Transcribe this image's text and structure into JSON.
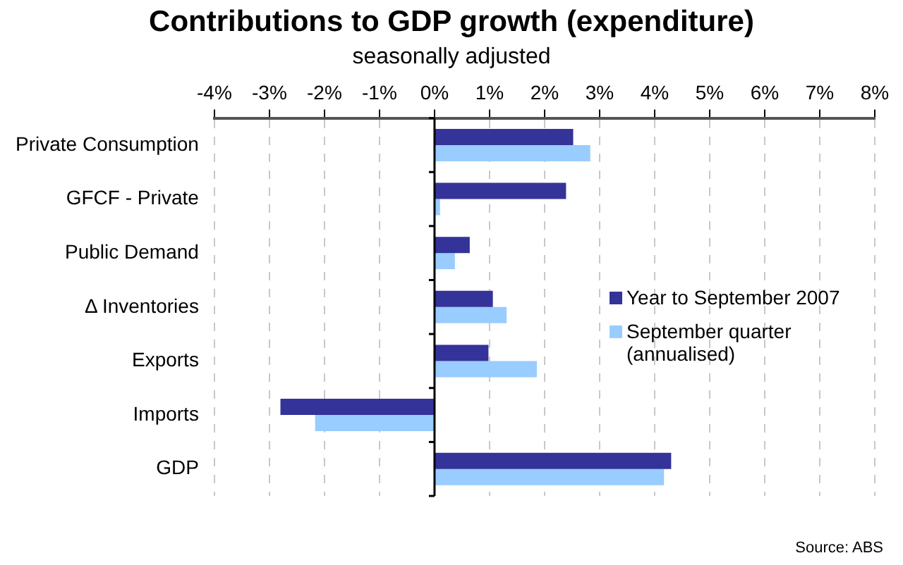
{
  "chart_data": {
    "type": "bar",
    "orientation": "horizontal",
    "title": "Contributions to GDP growth (expenditure)",
    "subtitle": "seasonally adjusted",
    "categories": [
      "Private Consumption",
      "GFCF - Private",
      "Public Demand",
      "Δ Inventories",
      "Exports",
      "Imports",
      "GDP"
    ],
    "series": [
      {
        "name": "Year to September 2007",
        "color": "#333399",
        "values": [
          2.52,
          2.39,
          0.64,
          1.06,
          0.98,
          -2.8,
          4.3
        ]
      },
      {
        "name": "September quarter (annualised)",
        "color": "#99ccff",
        "values": [
          2.83,
          0.1,
          0.37,
          1.31,
          1.86,
          -2.17,
          4.17
        ]
      }
    ],
    "xlim": [
      -4,
      8
    ],
    "xticks": [
      {
        "value": -4,
        "label": "-4%"
      },
      {
        "value": -3,
        "label": "-3%"
      },
      {
        "value": -2,
        "label": "-2%"
      },
      {
        "value": -1,
        "label": "-1%"
      },
      {
        "value": 0,
        "label": "0%"
      },
      {
        "value": 1,
        "label": "1%"
      },
      {
        "value": 2,
        "label": "2%"
      },
      {
        "value": 3,
        "label": "3%"
      },
      {
        "value": 4,
        "label": "4%"
      },
      {
        "value": 5,
        "label": "5%"
      },
      {
        "value": 6,
        "label": "6%"
      },
      {
        "value": 7,
        "label": "7%"
      },
      {
        "value": 8,
        "label": "8%"
      }
    ],
    "grid": "x",
    "legend": "right",
    "annotations": [
      "Source: ABS"
    ]
  }
}
